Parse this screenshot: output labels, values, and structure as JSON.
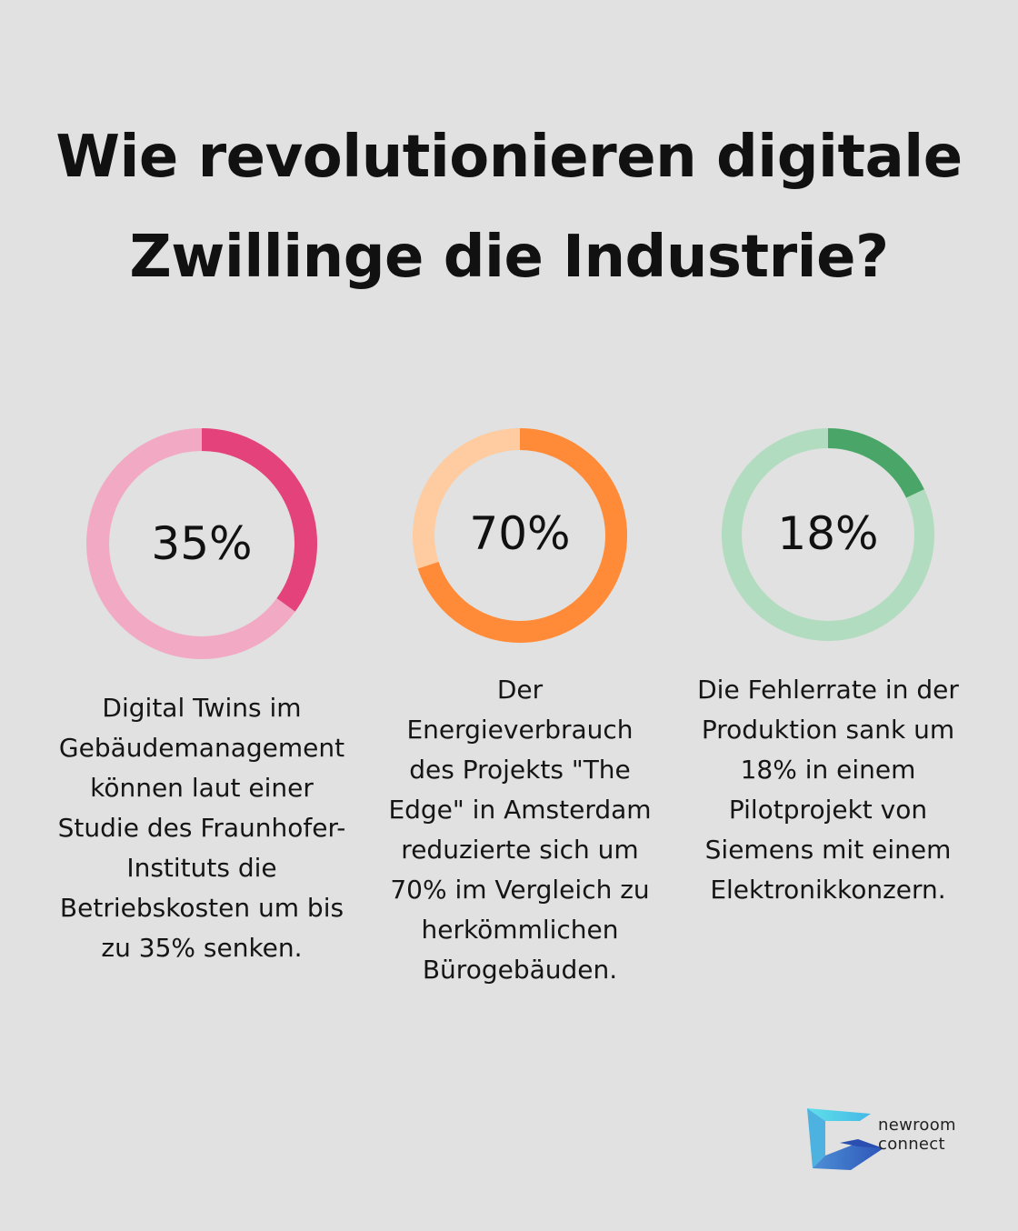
{
  "title": "Wie revolutionieren digitale Zwillinge die Industrie?",
  "chart_data": {
    "type": "pie",
    "charts": [
      {
        "value": 35,
        "label": "35%",
        "description": "Digital Twins im Gebäudemanagement können laut einer Studie des Fraunhofer-Instituts die Betriebskosten um bis zu 35% senken.",
        "color": "#e3437a",
        "track_color": "#f2aac4"
      },
      {
        "value": 70,
        "label": "70%",
        "description": "Der Energieverbrauch des Projekts \"The Edge\" in Amsterdam reduzierte sich um 70% im Vergleich zu herkömmlichen Bürogebäuden.",
        "color": "#ff8a38",
        "track_color": "#ffcba0"
      },
      {
        "value": 18,
        "label": "18%",
        "description": "Die Fehlerrate in der Produktion sank um 18% in einem Pilotprojekt von Siemens mit einem Elektronikkonzern.",
        "color": "#4aa668",
        "track_color": "#b2dcc0"
      }
    ]
  },
  "logo": {
    "line1": "newroom",
    "line2": "connect",
    "icon": "newroom-connect-logo-icon"
  }
}
